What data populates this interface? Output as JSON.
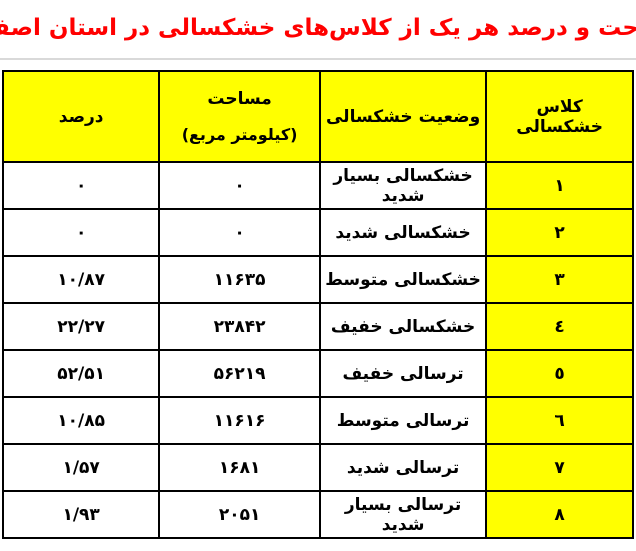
{
  "title": "مساحت و درصد هر یک از کلاس‌های خشکسالی در استان اصفهان",
  "colors": {
    "title_red": "#ff0000",
    "header_yellow": "#ffff00",
    "border_black": "#000000",
    "divider_gray": "#d9d9d9"
  },
  "table": {
    "headers": {
      "class": "کلاس خشکسالی",
      "status": "وضعیت خشکسالی",
      "area_line1": "مساحت",
      "area_line2": "(کیلومتر مربع)",
      "percent": "درصد"
    },
    "rows": [
      {
        "class": "۱",
        "status": "خشکسالی بسیار شدید",
        "area": "۰",
        "percent": "۰"
      },
      {
        "class": "۲",
        "status": "خشکسالی شدید",
        "area": "۰",
        "percent": "۰"
      },
      {
        "class": "۳",
        "status": "خشکسالی متوسط",
        "area": "۱۱۶۳۵",
        "percent": "۱۰/۸۷"
      },
      {
        "class": "٤",
        "status": "خشکسالی خفیف",
        "area": "۲۳۸۴۲",
        "percent": "۲۲/۲۷"
      },
      {
        "class": "٥",
        "status": "ترسالی خفیف",
        "area": "۵۶۲۱۹",
        "percent": "۵۲/۵۱"
      },
      {
        "class": "٦",
        "status": "ترسالی متوسط",
        "area": "۱۱۶۱۶",
        "percent": "۱۰/۸۵"
      },
      {
        "class": "۷",
        "status": "ترسالی شدید",
        "area": "۱۶۸۱",
        "percent": "۱/۵۷"
      },
      {
        "class": "۸",
        "status": "ترسالی بسیار شدید",
        "area": "۲۰۵۱",
        "percent": "۱/۹۳"
      }
    ]
  },
  "chart_data": {
    "type": "table",
    "title": "مساحت و درصد هر یک از کلاس‌های خشکسالی در استان اصفهان",
    "columns": [
      "کلاس خشکسالی",
      "وضعیت خشکسالی",
      "مساحت (کیلومتر مربع)",
      "درصد"
    ],
    "classes": [
      1,
      2,
      3,
      4,
      5,
      6,
      7,
      8
    ],
    "area_km2": [
      0,
      0,
      11635,
      23842,
      56219,
      11616,
      1681,
      2051
    ],
    "percent": [
      0,
      0,
      10.87,
      22.27,
      52.51,
      10.85,
      1.57,
      1.93
    ]
  }
}
